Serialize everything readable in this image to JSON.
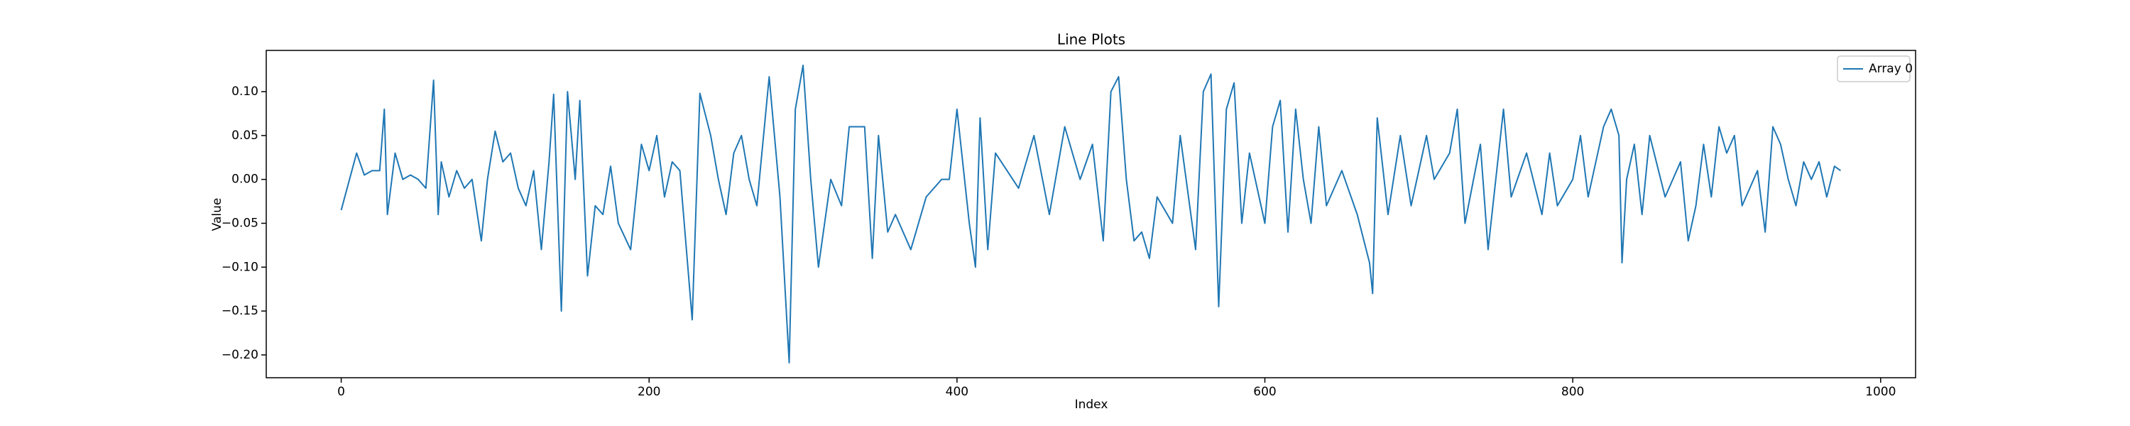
{
  "chart_data": {
    "type": "line",
    "title": "Line Plots",
    "x_label": "Index",
    "y_label": "Value",
    "x": [
      0,
      10,
      15,
      20,
      25,
      28,
      30,
      35,
      40,
      45,
      50,
      55,
      60,
      63,
      65,
      70,
      75,
      80,
      85,
      91,
      95,
      100,
      105,
      110,
      115,
      120,
      125,
      130,
      135,
      138,
      143,
      147,
      152,
      155,
      160,
      165,
      170,
      175,
      180,
      188,
      195,
      200,
      205,
      210,
      215,
      220,
      228,
      233,
      240,
      245,
      250,
      255,
      260,
      265,
      270,
      278,
      285,
      291,
      295,
      300,
      305,
      310,
      318,
      325,
      330,
      340,
      345,
      349,
      355,
      360,
      370,
      380,
      390,
      395,
      400,
      408,
      412,
      415,
      420,
      425,
      440,
      450,
      460,
      470,
      480,
      488,
      495,
      500,
      505,
      510,
      515,
      520,
      525,
      530,
      540,
      545,
      555,
      560,
      565,
      570,
      575,
      580,
      585,
      590,
      600,
      605,
      610,
      615,
      620,
      625,
      630,
      635,
      640,
      650,
      660,
      668,
      670,
      673,
      680,
      688,
      695,
      705,
      710,
      720,
      725,
      730,
      740,
      745,
      750,
      755,
      760,
      770,
      780,
      785,
      790,
      800,
      805,
      810,
      820,
      825,
      830,
      832,
      835,
      840,
      845,
      850,
      860,
      870,
      875,
      880,
      885,
      890,
      895,
      900,
      905,
      910,
      920,
      925,
      930,
      935,
      940,
      945,
      950,
      955,
      960,
      965,
      970,
      974
    ],
    "series": [
      {
        "name": "Array 0",
        "color": "#1f77b4",
        "values": [
          -0.035,
          0.03,
          0.005,
          0.01,
          0.01,
          0.08,
          -0.04,
          0.03,
          0.0,
          0.005,
          0.0,
          -0.01,
          0.113,
          -0.04,
          0.02,
          -0.02,
          0.01,
          -0.01,
          0.0,
          -0.07,
          0.0,
          0.055,
          0.02,
          0.03,
          -0.01,
          -0.03,
          0.01,
          -0.08,
          0.02,
          0.097,
          -0.15,
          0.1,
          0.0,
          0.09,
          -0.11,
          -0.03,
          -0.04,
          0.015,
          -0.05,
          -0.08,
          0.04,
          0.01,
          0.05,
          -0.02,
          0.02,
          0.01,
          -0.16,
          0.098,
          0.05,
          0.0,
          -0.04,
          0.03,
          0.05,
          0.0,
          -0.03,
          0.117,
          -0.02,
          -0.209,
          0.08,
          0.13,
          0.0,
          -0.1,
          0.0,
          -0.03,
          0.06,
          0.06,
          -0.09,
          0.05,
          -0.06,
          -0.04,
          -0.08,
          -0.02,
          0.0,
          0.0,
          0.08,
          -0.05,
          -0.1,
          0.07,
          -0.08,
          0.03,
          -0.01,
          0.05,
          -0.04,
          0.06,
          0.0,
          0.04,
          -0.07,
          0.1,
          0.117,
          0.0,
          -0.07,
          -0.06,
          -0.09,
          -0.02,
          -0.05,
          0.05,
          -0.08,
          0.1,
          0.12,
          -0.145,
          0.08,
          0.11,
          -0.05,
          0.03,
          -0.05,
          0.06,
          0.09,
          -0.06,
          0.08,
          0.0,
          -0.05,
          0.06,
          -0.03,
          0.01,
          -0.04,
          -0.095,
          -0.13,
          0.07,
          -0.04,
          0.05,
          -0.03,
          0.05,
          0.0,
          0.03,
          0.08,
          -0.05,
          0.04,
          -0.08,
          0.0,
          0.08,
          -0.02,
          0.03,
          -0.04,
          0.03,
          -0.03,
          0.0,
          0.05,
          -0.02,
          0.06,
          0.08,
          0.05,
          -0.095,
          0.0,
          0.04,
          -0.04,
          0.05,
          -0.02,
          0.02,
          -0.07,
          -0.03,
          0.04,
          -0.02,
          0.06,
          0.03,
          0.05,
          -0.03,
          0.01,
          -0.06,
          0.06,
          0.04,
          0.0,
          -0.03,
          0.02,
          0.0,
          0.02,
          -0.02,
          0.015,
          0.01
        ]
      }
    ],
    "xlim": [
      -48.7,
      1022.7
    ],
    "ylim": [
      -0.226,
      0.147
    ],
    "xticks": [
      0,
      200,
      400,
      600,
      800,
      1000
    ],
    "yticks": [
      {
        "value": -0.2,
        "label": "−0.20"
      },
      {
        "value": -0.15,
        "label": "−0.15"
      },
      {
        "value": -0.1,
        "label": "−0.10"
      },
      {
        "value": -0.05,
        "label": "−0.05"
      },
      {
        "value": 0,
        "label": "0.00"
      },
      {
        "value": 0.05,
        "label": "0.05"
      },
      {
        "value": 0.1,
        "label": "0.10"
      }
    ],
    "legend": "upper right",
    "grid": false
  }
}
